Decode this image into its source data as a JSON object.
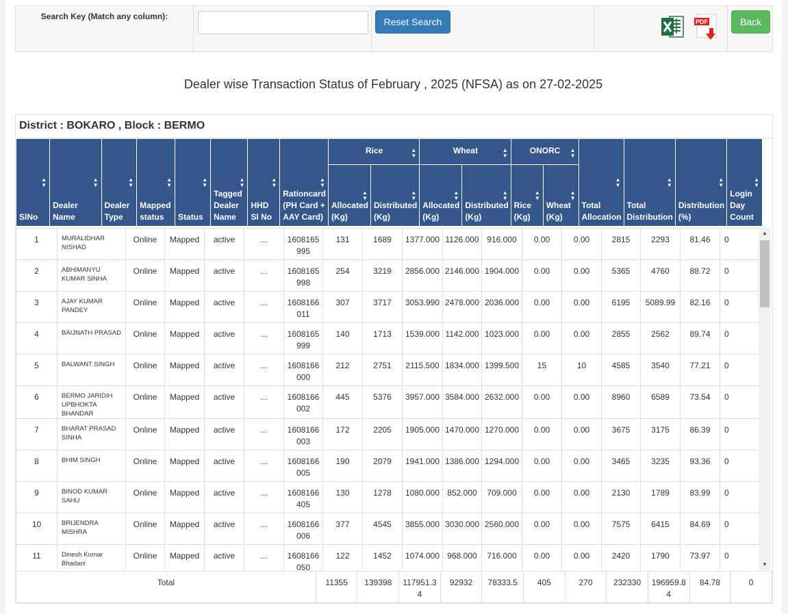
{
  "search": {
    "label": "Search Key (Match any column):",
    "value": "",
    "placeholder": "",
    "reset_label": "Reset Search",
    "back_label": "Back"
  },
  "export": {
    "pdf_badge": "PDF"
  },
  "report_title": "Dealer wise Transaction Status of February , 2025 (NFSA) as on 27-02-2025",
  "district_line": "District : BOKARO , Block : BERMO",
  "headers": {
    "slno": "SlNo",
    "dealer_name": "Dealer Name",
    "dealer_type": "Dealer Type",
    "mapped_status": "Mapped status",
    "status": "Status",
    "tagged_dealer": "Tagged Dealer Name",
    "hhd": "HHD Sl No",
    "rationcard": "Rationcard (PH Card + AAY Card)",
    "rice": "Rice",
    "wheat": "Wheat",
    "onorc": "ONORC",
    "allocated": "Allocated (Kg)",
    "distributed": "Distributed (Kg)",
    "onorc_rice": "Rice (Kg)",
    "onorc_wheat": "Wheat (Kg)",
    "total_alloc": "Total Allocation",
    "total_distri": "Total Distribution",
    "distri_pct": "Distribution (%)",
    "login_day": "Login Day Count"
  },
  "rows": [
    {
      "sl": "1",
      "name": "MURALIDHAR NISHAD",
      "type": "Online",
      "mapped": "Mapped",
      "status": "active",
      "tagged": "...",
      "hhd": "1608165995",
      "ration": "131",
      "rice_alloc": "1689",
      "rice_dist": "1377.000",
      "wheat_alloc": "1126.000",
      "wheat_dist": "916.000",
      "onorc_rice": "0.00",
      "onorc_wheat": "0.00",
      "total_alloc": "2815",
      "total_dist": "2293",
      "pct": "81.46",
      "login": "0"
    },
    {
      "sl": "2",
      "name": "ABHIMANYU KUMAR SINHA",
      "type": "Online",
      "mapped": "Mapped",
      "status": "active",
      "tagged": "...",
      "hhd": "1608165998",
      "ration": "254",
      "rice_alloc": "3219",
      "rice_dist": "2856.000",
      "wheat_alloc": "2146.000",
      "wheat_dist": "1904.000",
      "onorc_rice": "0.00",
      "onorc_wheat": "0.00",
      "total_alloc": "5365",
      "total_dist": "4760",
      "pct": "88.72",
      "login": "0"
    },
    {
      "sl": "3",
      "name": "AJAY KUMAR PANDEY",
      "type": "Online",
      "mapped": "Mapped",
      "status": "active",
      "tagged": "...",
      "hhd": "1608166011",
      "ration": "307",
      "rice_alloc": "3717",
      "rice_dist": "3053.990",
      "wheat_alloc": "2478.000",
      "wheat_dist": "2036.000",
      "onorc_rice": "0.00",
      "onorc_wheat": "0.00",
      "total_alloc": "6195",
      "total_dist": "5089.99",
      "pct": "82.16",
      "login": "0"
    },
    {
      "sl": "4",
      "name": "BAIJNATH PRASAD",
      "type": "Online",
      "mapped": "Mapped",
      "status": "active",
      "tagged": "...",
      "hhd": "1608165999",
      "ration": "140",
      "rice_alloc": "1713",
      "rice_dist": "1539.000",
      "wheat_alloc": "1142.000",
      "wheat_dist": "1023.000",
      "onorc_rice": "0.00",
      "onorc_wheat": "0.00",
      "total_alloc": "2855",
      "total_dist": "2562",
      "pct": "89.74",
      "login": "0"
    },
    {
      "sl": "5",
      "name": "BALWANT SINGH",
      "type": "Online",
      "mapped": "Mapped",
      "status": "active",
      "tagged": "...",
      "hhd": "1608166000",
      "ration": "212",
      "rice_alloc": "2751",
      "rice_dist": "2115.500",
      "wheat_alloc": "1834.000",
      "wheat_dist": "1399.500",
      "onorc_rice": "15",
      "onorc_wheat": "10",
      "total_alloc": "4585",
      "total_dist": "3540",
      "pct": "77.21",
      "login": "0"
    },
    {
      "sl": "6",
      "name": "BERMO JARIDIH UPBHOKTA BHANDAR",
      "type": "Online",
      "mapped": "Mapped",
      "status": "active",
      "tagged": "...",
      "hhd": "1608166002",
      "ration": "445",
      "rice_alloc": "5376",
      "rice_dist": "3957.000",
      "wheat_alloc": "3584.000",
      "wheat_dist": "2632.000",
      "onorc_rice": "0.00",
      "onorc_wheat": "0.00",
      "total_alloc": "8960",
      "total_dist": "6589",
      "pct": "73.54",
      "login": "0"
    },
    {
      "sl": "7",
      "name": "BHARAT PRASAD SINHA",
      "type": "Online",
      "mapped": "Mapped",
      "status": "active",
      "tagged": "...",
      "hhd": "1608166003",
      "ration": "172",
      "rice_alloc": "2205",
      "rice_dist": "1905.000",
      "wheat_alloc": "1470.000",
      "wheat_dist": "1270.000",
      "onorc_rice": "0.00",
      "onorc_wheat": "0.00",
      "total_alloc": "3675",
      "total_dist": "3175",
      "pct": "86.39",
      "login": "0"
    },
    {
      "sl": "8",
      "name": "BHIM SINGH",
      "type": "Online",
      "mapped": "Mapped",
      "status": "active",
      "tagged": "...",
      "hhd": "1608166005",
      "ration": "190",
      "rice_alloc": "2079",
      "rice_dist": "1941.000",
      "wheat_alloc": "1386.000",
      "wheat_dist": "1294.000",
      "onorc_rice": "0.00",
      "onorc_wheat": "0.00",
      "total_alloc": "3465",
      "total_dist": "3235",
      "pct": "93.36",
      "login": "0"
    },
    {
      "sl": "9",
      "name": "BINOD KUMAR SAHU",
      "type": "Online",
      "mapped": "Mapped",
      "status": "active",
      "tagged": "...",
      "hhd": "1608166405",
      "ration": "130",
      "rice_alloc": "1278",
      "rice_dist": "1080.000",
      "wheat_alloc": "852.000",
      "wheat_dist": "709.000",
      "onorc_rice": "0.00",
      "onorc_wheat": "0.00",
      "total_alloc": "2130",
      "total_dist": "1789",
      "pct": "83.99",
      "login": "0"
    },
    {
      "sl": "10",
      "name": "BRIJENDRA MISHRA",
      "type": "Online",
      "mapped": "Mapped",
      "status": "active",
      "tagged": "...",
      "hhd": "1608166006",
      "ration": "377",
      "rice_alloc": "4545",
      "rice_dist": "3855.000",
      "wheat_alloc": "3030.000",
      "wheat_dist": "2560.000",
      "onorc_rice": "0.00",
      "onorc_wheat": "0.00",
      "total_alloc": "7575",
      "total_dist": "6415",
      "pct": "84.69",
      "login": "0"
    },
    {
      "sl": "11",
      "name": "Dinesh Kumar Bhadani",
      "type": "Online",
      "mapped": "Mapped",
      "status": "active",
      "tagged": "...",
      "hhd": "1608166050",
      "ration": "122",
      "rice_alloc": "1452",
      "rice_dist": "1074.000",
      "wheat_alloc": "968.000",
      "wheat_dist": "716.000",
      "onorc_rice": "0.00",
      "onorc_wheat": "0.00",
      "total_alloc": "2420",
      "total_dist": "1790",
      "pct": "73.97",
      "login": "0"
    }
  ],
  "totals": {
    "label": "Total",
    "ration": "11355",
    "rice_alloc": "139398",
    "rice_dist": "117951.34",
    "wheat_alloc": "92932",
    "wheat_dist": "78333.5",
    "onorc_rice": "405",
    "onorc_wheat": "270",
    "total_alloc": "232330",
    "total_dist": "196959.84",
    "pct": "84.78",
    "login": "0"
  },
  "colors": {
    "header_bg": "#34568b",
    "online_text": "#008000",
    "reset_button": "#337ab7",
    "back_button": "#5cb85c"
  },
  "icons": [
    "excel-icon",
    "pdf-download-icon",
    "sort-icon",
    "scroll-up-icon",
    "scroll-down-icon"
  ]
}
